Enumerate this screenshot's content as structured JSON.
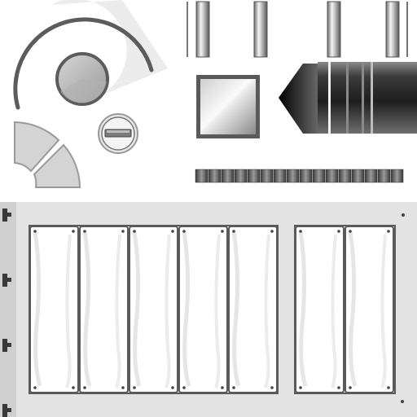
{
  "sprite_sheet": {
    "name": "",
    "colors": {
      "background": "#ffffff",
      "panel_fill": "#e3e3e3",
      "panel_dark": "#7a7a7a",
      "frame_stroke": "#5a5a5a",
      "slot_fill": "#ffffff",
      "ring_light": "#e8e8e8",
      "ring_stroke": "#555555",
      "knob_fill": "#b9b9b9",
      "quarter_fill": "#d4d4d4",
      "quarter_stroke": "#9a9a9a",
      "connector_dark": "#2a2a2a",
      "connector_light": "#f2f2f2",
      "pin_dark": "#444444",
      "accent_white": "#ffffff"
    },
    "sprites": {
      "rails": {
        "count": 4
      },
      "slider_strip": {
        "segments": 16
      },
      "panel": {
        "left_slots": 5,
        "right_slots": 2,
        "side_clips": 4,
        "screws_per_slot": 4
      }
    }
  }
}
